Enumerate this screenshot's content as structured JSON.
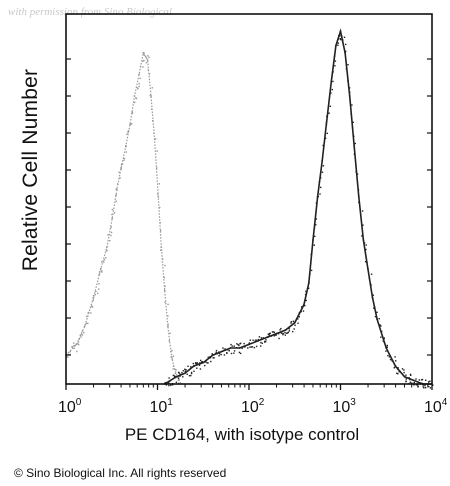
{
  "watermark": "with permission from Sino Biological",
  "copyright": "© Sino Biological Inc. All rights reserved",
  "chart_data": {
    "type": "area",
    "xlabel": "PE CD164, with isotype control",
    "ylabel": "Relative Cell Number",
    "x_scale": "log",
    "xlim": [
      1,
      10000
    ],
    "ylim": [
      0,
      100
    ],
    "x_ticks": [
      {
        "base": "10",
        "exp": "0",
        "value": 1
      },
      {
        "base": "10",
        "exp": "1",
        "value": 10
      },
      {
        "base": "10",
        "exp": "2",
        "value": 100
      },
      {
        "base": "10",
        "exp": "3",
        "value": 1000
      },
      {
        "base": "10",
        "exp": "4",
        "value": 10000
      }
    ],
    "colors": {
      "isotype": "#9a9a9a",
      "stained": "#222222",
      "axis": "#111111"
    },
    "series": [
      {
        "x": [
          1.0,
          1.3,
          1.6,
          2.0,
          2.4,
          2.8,
          3.2,
          3.6,
          4.0,
          4.5,
          5.0,
          5.6,
          6.3,
          7.0,
          7.8,
          8.5,
          9.3,
          10.2,
          11.0,
          12.0,
          13.0,
          14.0,
          15.0,
          16.5,
          18.0
        ],
        "values": [
          8,
          11,
          16,
          24,
          32,
          38,
          46,
          54,
          60,
          66,
          72,
          80,
          86,
          92,
          90,
          80,
          68,
          52,
          38,
          26,
          16,
          9,
          5,
          2,
          0
        ],
        "color_key": "isotype"
      },
      {
        "x": [
          12,
          16,
          20,
          25,
          32,
          40,
          50,
          63,
          79,
          100,
          126,
          158,
          200,
          251,
          316,
          398,
          450,
          501,
          562,
          631,
          700,
          794,
          891,
          1000,
          1122,
          1259,
          1413,
          1585,
          1778,
          1995,
          2239,
          2512,
          3162,
          3981,
          5012,
          6310,
          7943,
          10000
        ],
        "values": [
          0,
          2,
          3,
          5,
          6,
          8,
          9,
          10,
          10,
          11,
          12,
          13,
          14,
          15,
          17,
          22,
          28,
          40,
          52,
          62,
          72,
          84,
          94,
          98,
          92,
          80,
          66,
          52,
          40,
          32,
          24,
          18,
          10,
          5,
          2,
          1,
          0,
          0
        ],
        "color_key": "stained"
      }
    ]
  }
}
